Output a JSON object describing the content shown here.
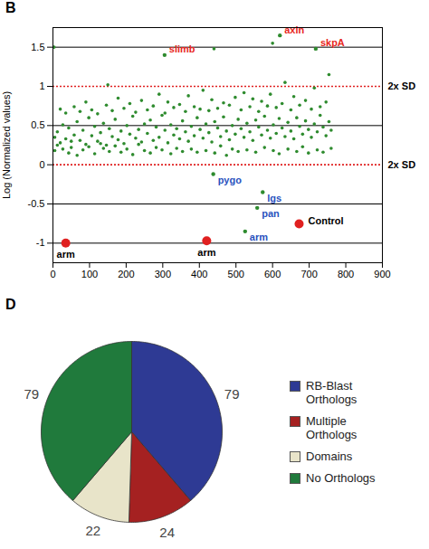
{
  "chart_data": [
    {
      "type": "scatter",
      "title": "B",
      "y_label": "Log (Normalized values)",
      "xlim": [
        0,
        900
      ],
      "xticks": [
        0,
        100,
        200,
        300,
        400,
        500,
        600,
        700,
        800,
        900
      ],
      "ylim": [
        -1.25,
        1.75
      ],
      "yticks": [
        -1,
        -0.5,
        0,
        0.5,
        1,
        1.5
      ],
      "grid": true,
      "color": "#2e8b2e",
      "x": [
        5,
        12,
        20,
        27,
        35,
        43,
        50,
        58,
        66,
        74,
        82,
        90,
        98,
        106,
        114,
        122,
        130,
        138,
        146,
        154,
        162,
        170,
        178,
        186,
        194,
        202,
        210,
        218,
        226,
        234,
        242,
        250,
        258,
        266,
        274,
        282,
        290,
        298,
        306,
        314,
        322,
        330,
        338,
        346,
        354,
        362,
        370,
        378,
        386,
        394,
        402,
        410,
        418,
        426,
        434,
        442,
        450,
        458,
        466,
        474,
        482,
        490,
        498,
        506,
        514,
        522,
        530,
        538,
        546,
        554,
        562,
        570,
        578,
        586,
        594,
        602,
        610,
        618,
        626,
        634,
        642,
        650,
        658,
        666,
        674,
        682,
        690,
        698,
        706,
        714,
        722,
        730,
        738,
        746,
        754,
        760,
        5,
        12,
        20,
        27,
        35,
        43,
        50,
        58,
        66,
        74,
        82,
        90,
        98,
        106,
        114,
        122,
        130,
        138,
        146,
        154,
        162,
        170,
        178,
        186,
        194,
        202,
        210,
        218,
        226,
        234,
        242,
        250,
        258,
        266,
        274,
        282,
        290,
        298,
        306,
        314,
        322,
        330,
        338,
        346,
        354,
        362,
        370,
        378,
        386,
        394,
        402,
        410,
        418,
        426,
        434,
        442,
        450,
        458,
        466,
        474,
        482,
        490,
        498,
        506,
        514,
        522,
        530,
        538,
        546,
        554,
        562,
        570,
        578,
        586,
        594,
        602,
        610,
        618,
        626,
        634,
        642,
        650,
        658,
        666,
        674,
        682,
        690,
        698,
        706,
        714,
        722,
        730,
        738,
        746,
        754,
        760,
        3,
        440,
        150,
        600
      ],
      "y": [
        0.35,
        0.42,
        0.28,
        0.51,
        0.33,
        0.47,
        0.22,
        0.38,
        0.55,
        0.31,
        0.44,
        0.26,
        0.6,
        0.37,
        0.49,
        0.3,
        0.41,
        0.53,
        0.25,
        0.46,
        0.36,
        0.58,
        0.32,
        0.43,
        0.27,
        0.5,
        0.39,
        0.62,
        0.34,
        0.45,
        0.29,
        0.52,
        0.4,
        0.57,
        0.31,
        0.48,
        0.35,
        0.63,
        0.44,
        0.28,
        0.51,
        0.38,
        0.46,
        0.33,
        0.56,
        0.42,
        0.3,
        0.49,
        0.37,
        0.6,
        0.45,
        0.34,
        0.52,
        0.41,
        0.29,
        0.55,
        0.47,
        0.36,
        0.61,
        0.43,
        0.32,
        0.5,
        0.39,
        0.58,
        0.46,
        0.35,
        0.53,
        0.42,
        0.31,
        0.57,
        0.48,
        0.38,
        0.62,
        0.44,
        0.34,
        0.51,
        0.4,
        0.59,
        0.47,
        0.36,
        0.54,
        0.43,
        0.33,
        0.6,
        0.49,
        0.39,
        0.56,
        0.45,
        0.35,
        0.52,
        0.42,
        0.63,
        0.48,
        0.37,
        0.55,
        0.44,
        0.18,
        0.25,
        0.71,
        0.2,
        0.66,
        0.15,
        0.3,
        0.74,
        0.12,
        0.68,
        0.19,
        0.8,
        0.23,
        0.7,
        0.14,
        0.65,
        0.27,
        0.21,
        0.76,
        0.17,
        0.69,
        0.24,
        0.85,
        0.16,
        0.72,
        0.2,
        0.78,
        0.13,
        0.67,
        0.26,
        0.82,
        0.18,
        0.7,
        0.15,
        0.75,
        0.22,
        0.9,
        0.19,
        0.66,
        0.8,
        0.14,
        0.73,
        0.21,
        0.77,
        0.17,
        0.68,
        0.88,
        0.2,
        0.74,
        0.16,
        0.71,
        0.95,
        0.18,
        0.69,
        0.83,
        0.15,
        0.72,
        0.24,
        0.79,
        0.12,
        0.76,
        0.2,
        0.86,
        0.17,
        0.7,
        0.92,
        0.19,
        0.74,
        0.84,
        0.16,
        0.68,
        0.81,
        0.22,
        0.75,
        0.9,
        0.18,
        0.73,
        0.14,
        0.78,
        1.05,
        0.2,
        0.7,
        0.87,
        0.17,
        0.76,
        0.23,
        0.82,
        0.15,
        0.71,
        0.98,
        0.19,
        0.74,
        0.16,
        0.8,
        1.15,
        0.21,
        1.5,
        1.48,
        1.02,
        1.55
      ],
      "reference_lines": [
        {
          "value": 1,
          "label": "2x SD",
          "color": "#e02020"
        },
        {
          "value": 0,
          "label": "2x SD",
          "color": "#e02020"
        }
      ],
      "labeled_points": [
        {
          "x": 305,
          "y": 1.4,
          "label": "slimb",
          "color": "#e8281e"
        },
        {
          "x": 620,
          "y": 1.65,
          "label": "axin",
          "color": "#e8281e"
        },
        {
          "x": 718,
          "y": 1.48,
          "label": "skpA",
          "color": "#e8281e"
        },
        {
          "x": 438,
          "y": -0.12,
          "label": "pygo",
          "color": "#2a52be"
        },
        {
          "x": 573,
          "y": -0.35,
          "label": "lgs",
          "color": "#2a52be"
        },
        {
          "x": 558,
          "y": -0.55,
          "label": "pan",
          "color": "#2a52be"
        },
        {
          "x": 525,
          "y": -0.85,
          "label": "arm",
          "color": "#2a52be"
        }
      ],
      "controls": {
        "name": "Control",
        "color": "#e02020",
        "x": [
          35,
          420
        ],
        "y": [
          -1,
          -0.97
        ],
        "labels": [
          "arm",
          "arm"
        ]
      }
    },
    {
      "type": "pie",
      "title": "D",
      "categories": [
        "RB-Blast Orthologs",
        "Multiple Orthologs",
        "Domains",
        "No Orthologs"
      ],
      "values": [
        79,
        24,
        22,
        79
      ],
      "colors": [
        "#2e3a94",
        "#a52121",
        "#e8e4c9",
        "#207a3c"
      ],
      "data_labels": true,
      "legend": "right"
    }
  ]
}
